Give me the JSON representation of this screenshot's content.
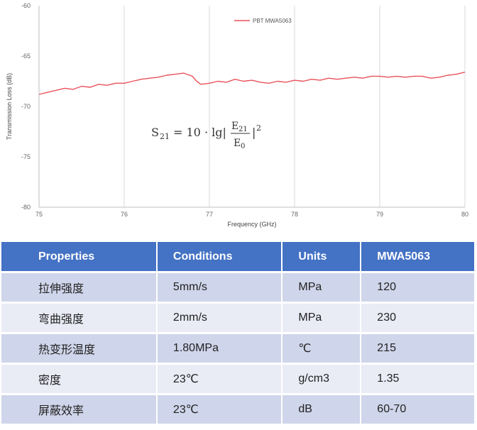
{
  "chart_data": {
    "type": "line",
    "xlabel": "Frequency (GHz)",
    "ylabel": "Transmission Loss (dB)",
    "xlim": [
      75,
      80
    ],
    "ylim": [
      -80,
      -60
    ],
    "x_ticks": [
      "75",
      "76",
      "77",
      "78",
      "79",
      "80"
    ],
    "y_ticks": [
      "-60",
      "-65",
      "-70",
      "-75",
      "-80"
    ],
    "grid": "vertical",
    "legend_position": "top-right",
    "series": [
      {
        "name": "PBT MWA5063",
        "color": "#e8525a",
        "x": [
          75.0,
          75.1,
          75.2,
          75.3,
          75.4,
          75.5,
          75.6,
          75.7,
          75.8,
          75.9,
          76.0,
          76.1,
          76.2,
          76.3,
          76.4,
          76.5,
          76.6,
          76.7,
          76.8,
          76.85,
          76.9,
          77.0,
          77.1,
          77.2,
          77.3,
          77.4,
          77.5,
          77.6,
          77.7,
          77.8,
          77.9,
          78.0,
          78.1,
          78.2,
          78.3,
          78.4,
          78.5,
          78.6,
          78.7,
          78.8,
          78.9,
          79.0,
          79.1,
          79.2,
          79.3,
          79.4,
          79.5,
          79.6,
          79.7,
          79.8,
          79.9,
          80.0
        ],
        "y": [
          -68.8,
          -68.6,
          -68.4,
          -68.2,
          -68.3,
          -68.0,
          -68.1,
          -67.8,
          -67.9,
          -67.7,
          -67.7,
          -67.5,
          -67.3,
          -67.2,
          -67.1,
          -66.9,
          -66.8,
          -66.7,
          -67.0,
          -67.5,
          -67.8,
          -67.7,
          -67.5,
          -67.6,
          -67.3,
          -67.5,
          -67.4,
          -67.6,
          -67.7,
          -67.5,
          -67.6,
          -67.4,
          -67.5,
          -67.3,
          -67.4,
          -67.2,
          -67.3,
          -67.2,
          -67.1,
          -67.2,
          -67.0,
          -67.0,
          -67.1,
          -67.0,
          -67.1,
          -67.0,
          -67.0,
          -67.2,
          -67.1,
          -66.9,
          -66.8,
          -66.6
        ]
      }
    ]
  },
  "formula": {
    "lhs": "S",
    "lhs_sub": "21",
    "middle": "= 10 · lg|",
    "num": "E",
    "num_sub": "21",
    "den": "E",
    "den_sub": "0",
    "tail": "|",
    "exp": "2"
  },
  "table": {
    "headers": [
      "Properties",
      "Conditions",
      "Units",
      "MWA5063"
    ],
    "rows": [
      [
        "拉伸强度",
        "5mm/s",
        "MPa",
        "120"
      ],
      [
        "弯曲强度",
        "2mm/s",
        "MPa",
        "230"
      ],
      [
        "热变形温度",
        "1.80MPa",
        "℃",
        "215"
      ],
      [
        "密度",
        "23℃",
        "g/cm3",
        "1.35"
      ],
      [
        "屏蔽效率",
        "23℃",
        "dB",
        "60-70"
      ]
    ]
  }
}
